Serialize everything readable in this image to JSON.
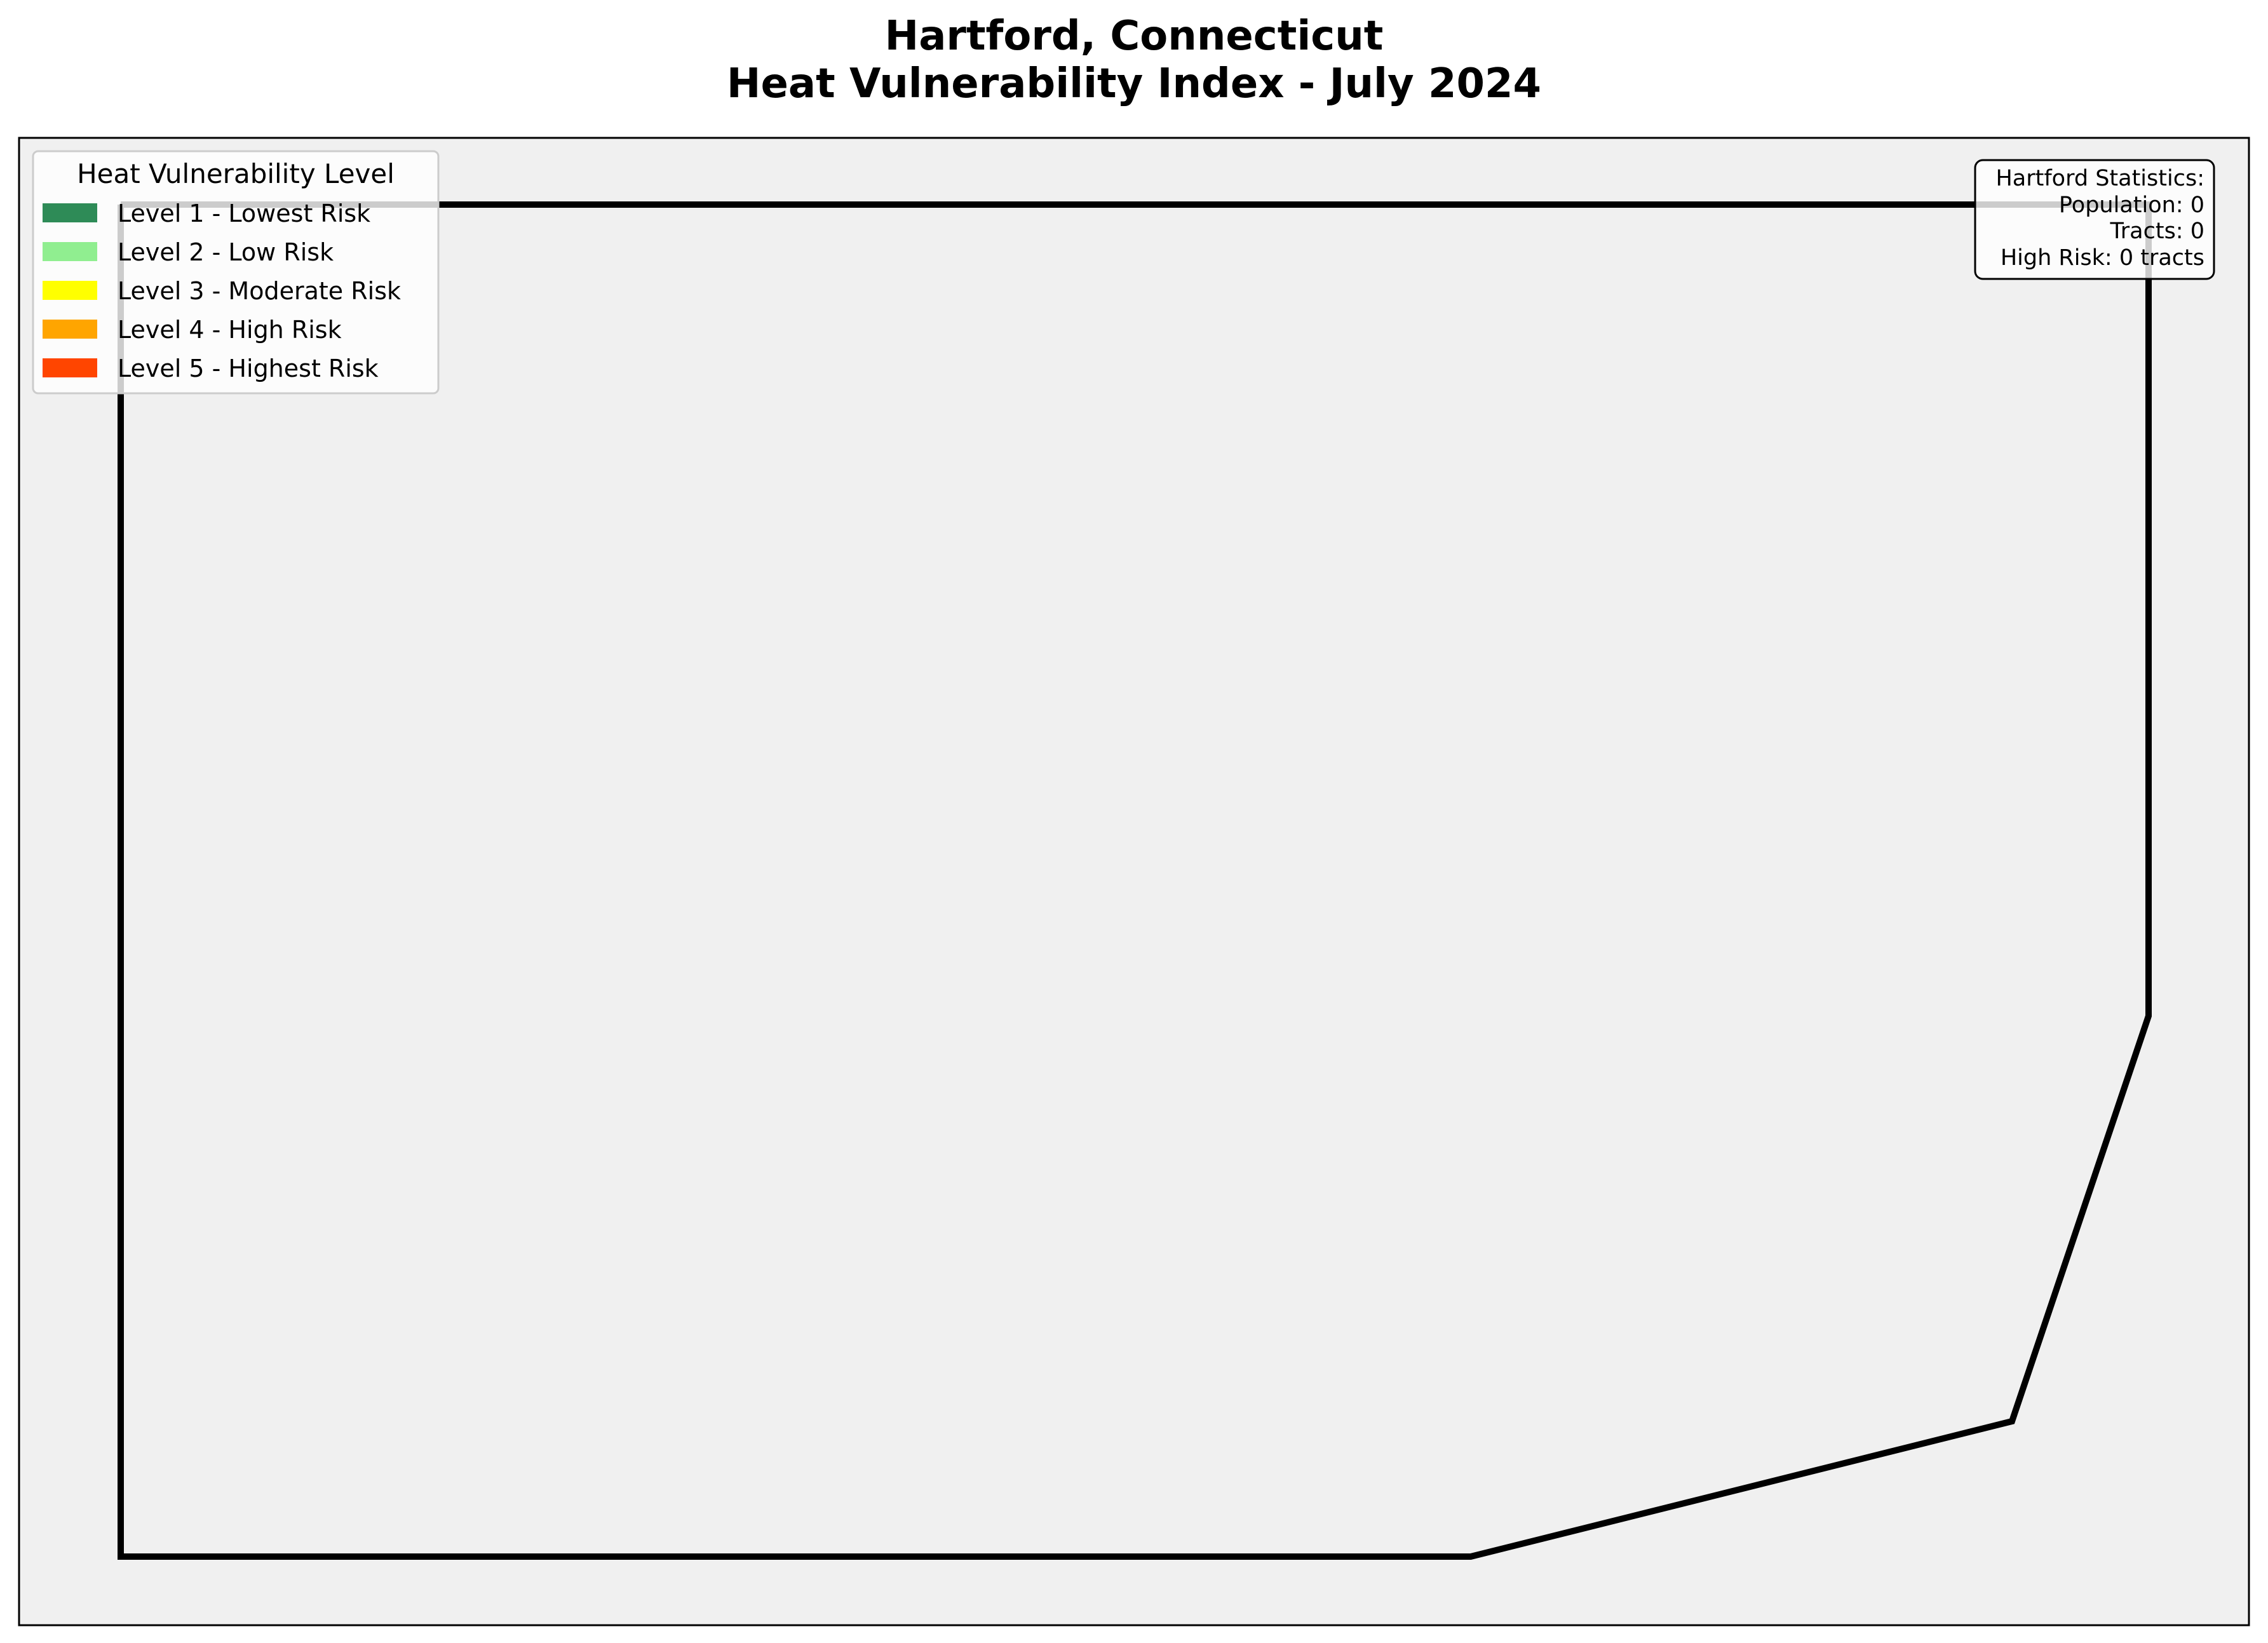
{
  "title": {
    "line1": "Hartford, Connecticut",
    "line2": "Heat Vulnerability Index - July 2024"
  },
  "legend": {
    "title": "Heat Vulnerability Level",
    "items": [
      {
        "label": "Level 1 - Lowest Risk",
        "color": "#2e8b57"
      },
      {
        "label": "Level 2 - Low Risk",
        "color": "#90ee90"
      },
      {
        "label": "Level 3 - Moderate Risk",
        "color": "#ffff00"
      },
      {
        "label": "Level 4 - High Risk",
        "color": "#ffa500"
      },
      {
        "label": "Level 5 - Highest Risk",
        "color": "#ff4500"
      }
    ]
  },
  "stats": {
    "heading": "Hartford Statistics:",
    "population": "Population: 0",
    "tracts": "Tracts: 0",
    "high_risk": "High Risk: 0 tracts"
  },
  "map": {
    "background_color": "#f0f0f0",
    "boundary_color": "#000000",
    "boundary_shape": "city-boundary"
  }
}
